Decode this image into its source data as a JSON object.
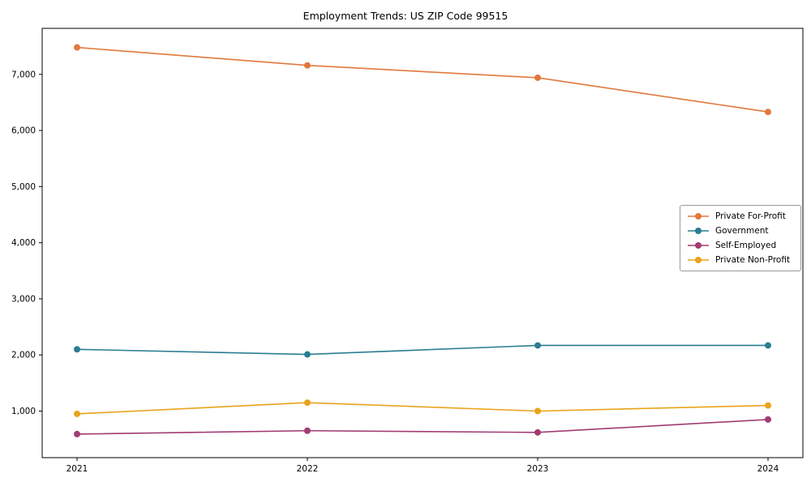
{
  "chart_data": {
    "type": "line",
    "title": "Employment Trends: US ZIP Code 99515",
    "x": [
      "2021",
      "2022",
      "2023",
      "2024"
    ],
    "series": [
      {
        "name": "Private For-Profit",
        "color": "#e0793d",
        "values": [
          7480,
          7160,
          6940,
          6330
        ]
      },
      {
        "name": "Government",
        "color": "#2a7d91",
        "values": [
          2100,
          2010,
          2170,
          2170
        ]
      },
      {
        "name": "Self-Employed",
        "color": "#a23b72",
        "values": [
          590,
          650,
          620,
          850
        ]
      },
      {
        "name": "Private Non-Profit",
        "color": "#e9a31b",
        "values": [
          950,
          1150,
          1000,
          1100
        ]
      }
    ],
    "xlabel": "",
    "ylabel": "",
    "ylim": [
      170,
      7820
    ],
    "yticks": [
      1000,
      2000,
      3000,
      4000,
      5000,
      6000,
      7000
    ],
    "grid": false,
    "legend_position": "center-right"
  }
}
